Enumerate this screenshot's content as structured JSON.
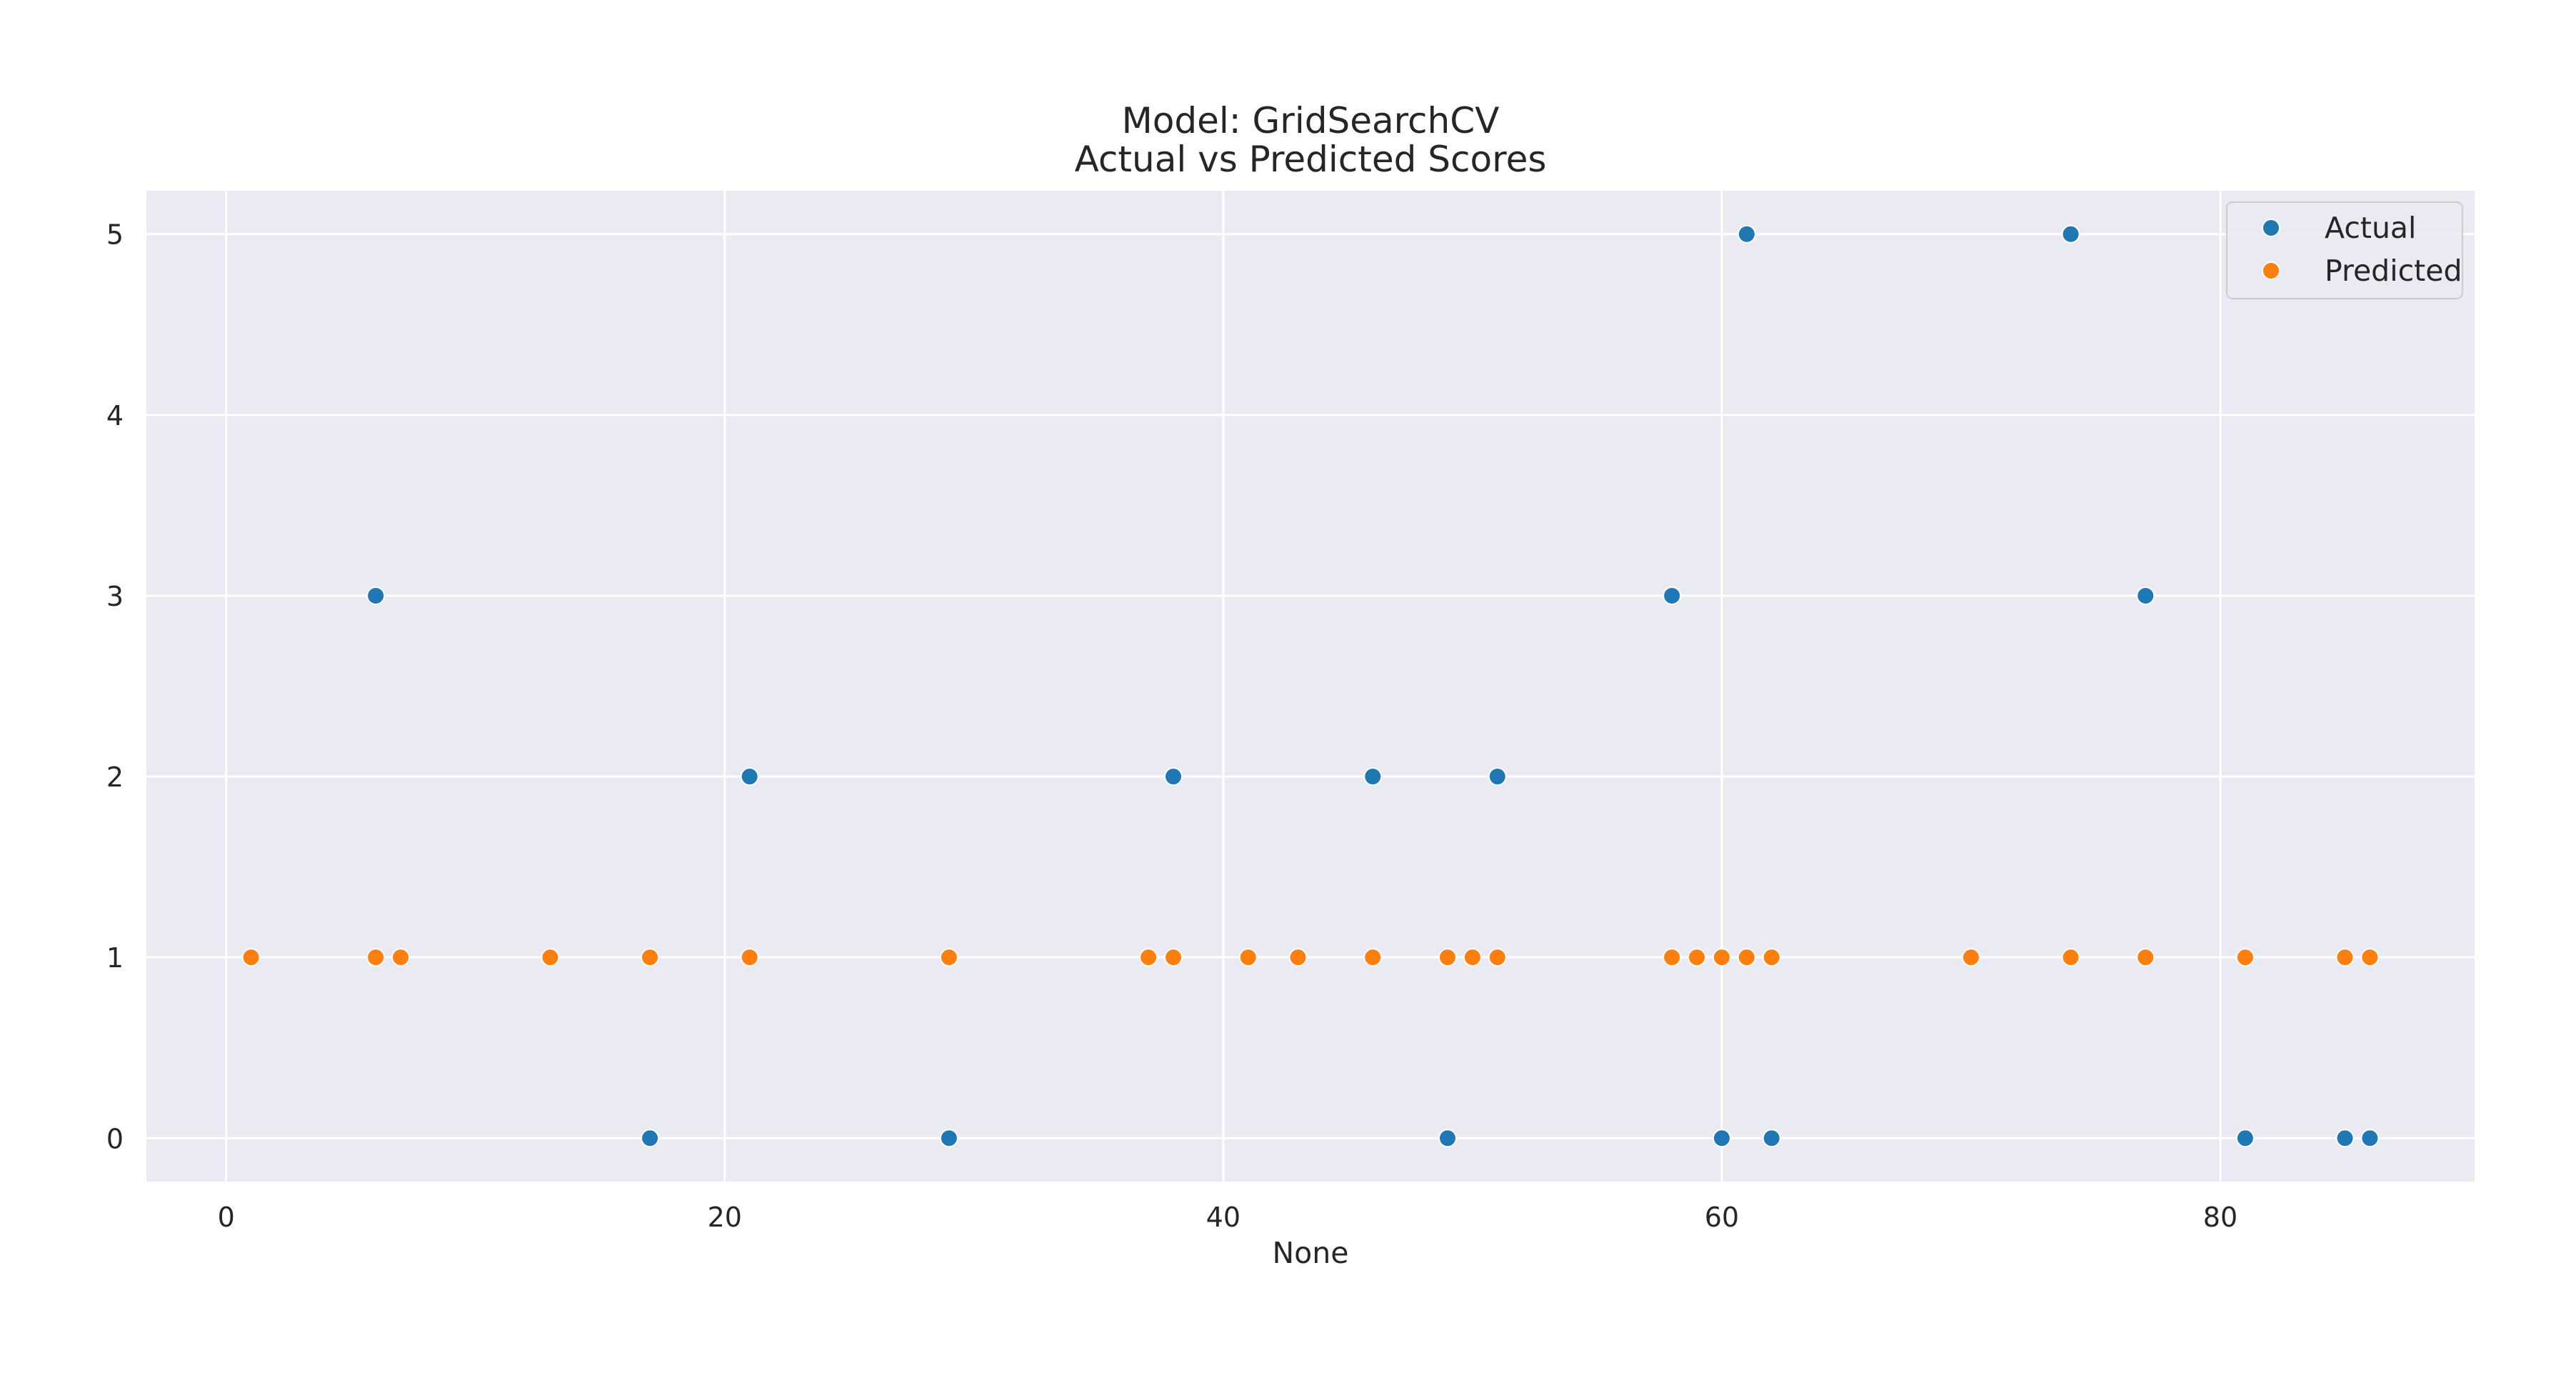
{
  "chart_data": {
    "type": "scatter",
    "title_line1": "Model: GridSearchCV",
    "title_line2": "Actual vs Predicted Scores",
    "xlabel": "None",
    "ylabel": "",
    "xlim": [
      -3.2,
      90.2
    ],
    "ylim": [
      -0.24,
      5.24
    ],
    "x_ticks": [
      0,
      20,
      40,
      60,
      80
    ],
    "y_ticks": [
      0,
      1,
      2,
      3,
      4,
      5
    ],
    "grid": true,
    "legend_position": "top-right",
    "colors": {
      "background": "#eaeaf2",
      "grid": "#ffffff",
      "actual": "#1f77b4",
      "predicted": "#ff7f0e",
      "text": "#262626"
    },
    "series": [
      {
        "name": "Actual",
        "x": [
          6,
          17,
          21,
          29,
          38,
          46,
          49,
          51,
          58,
          60,
          61,
          62,
          74,
          77,
          81,
          85,
          86
        ],
        "y": [
          3,
          0,
          2,
          0,
          2,
          2,
          0,
          2,
          3,
          0,
          5,
          0,
          5,
          3,
          0,
          0,
          0
        ]
      },
      {
        "name": "Predicted",
        "x": [
          1,
          6,
          7,
          13,
          17,
          21,
          29,
          37,
          38,
          41,
          43,
          46,
          49,
          50,
          51,
          58,
          59,
          60,
          61,
          62,
          70,
          74,
          77,
          81,
          85,
          86
        ],
        "y": [
          1,
          1,
          1,
          1,
          1,
          1,
          1,
          1,
          1,
          1,
          1,
          1,
          1,
          1,
          1,
          1,
          1,
          1,
          1,
          1,
          1,
          1,
          1,
          1,
          1,
          1
        ]
      }
    ]
  }
}
